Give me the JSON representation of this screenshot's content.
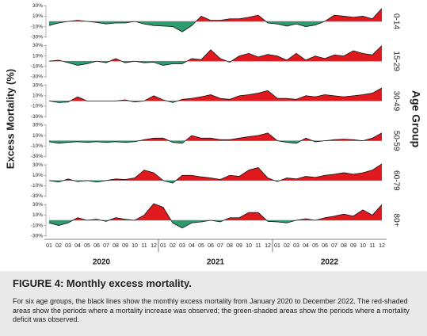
{
  "chart_data": {
    "type": "area",
    "y_label": "Excess Mortality (%)",
    "group_label": "Age Group",
    "categories": [
      "01",
      "02",
      "03",
      "04",
      "05",
      "06",
      "07",
      "08",
      "09",
      "10",
      "11",
      "12",
      "01",
      "02",
      "03",
      "04",
      "05",
      "06",
      "07",
      "08",
      "09",
      "10",
      "11",
      "12",
      "01",
      "02",
      "03",
      "04",
      "05",
      "06",
      "07",
      "08",
      "09",
      "10",
      "11",
      "12"
    ],
    "years": [
      "2020",
      "2021",
      "2022"
    ],
    "ylim": [
      -32,
      32
    ],
    "yticks": [
      {
        "value": 30,
        "label": "30%"
      },
      {
        "value": 10,
        "label": "10%"
      },
      {
        "value": -10,
        "label": "-10%"
      },
      {
        "value": -30,
        "label": "-30%"
      }
    ],
    "positive_color": "#e0191f",
    "negative_color": "#2e9b6e",
    "line_color": "#111111",
    "panels": [
      {
        "name": "0-14",
        "values": [
          -8,
          -3,
          0,
          2,
          0,
          -2,
          -5,
          -3,
          -3,
          0,
          -5,
          -8,
          -9,
          -10,
          -20,
          -8,
          10,
          2,
          2,
          5,
          5,
          8,
          12,
          -3,
          -5,
          -9,
          -5,
          -10,
          -7,
          0,
          12,
          10,
          8,
          10,
          5,
          25
        ]
      },
      {
        "name": "15-29",
        "values": [
          0,
          2,
          -3,
          -8,
          -5,
          0,
          -3,
          5,
          -3,
          0,
          -3,
          -2,
          -8,
          -5,
          -5,
          5,
          3,
          22,
          5,
          -2,
          10,
          15,
          8,
          13,
          10,
          2,
          15,
          2,
          10,
          5,
          12,
          10,
          20,
          15,
          12,
          30
        ]
      },
      {
        "name": "30-49",
        "values": [
          0,
          -3,
          -2,
          8,
          0,
          0,
          0,
          0,
          2,
          -2,
          0,
          10,
          2,
          -3,
          3,
          5,
          8,
          12,
          5,
          3,
          10,
          12,
          15,
          20,
          5,
          5,
          3,
          10,
          8,
          12,
          10,
          8,
          10,
          12,
          15,
          25
        ]
      },
      {
        "name": "50-59",
        "values": [
          -2,
          -5,
          -3,
          -2,
          -3,
          -2,
          -3,
          -2,
          -3,
          -2,
          2,
          5,
          5,
          -3,
          -5,
          10,
          5,
          5,
          2,
          2,
          5,
          8,
          10,
          15,
          0,
          -3,
          -5,
          5,
          -2,
          0,
          2,
          3,
          2,
          0,
          5,
          15
        ]
      },
      {
        "name": "60-79",
        "values": [
          0,
          -3,
          3,
          -2,
          0,
          -3,
          0,
          3,
          2,
          5,
          20,
          15,
          0,
          -5,
          10,
          10,
          7,
          5,
          2,
          10,
          8,
          20,
          25,
          5,
          -2,
          5,
          3,
          8,
          6,
          10,
          12,
          15,
          12,
          15,
          20,
          32
        ]
      },
      {
        "name": "80+",
        "values": [
          -5,
          -10,
          -5,
          5,
          0,
          2,
          -2,
          5,
          2,
          0,
          10,
          32,
          25,
          -5,
          -15,
          -5,
          -3,
          0,
          -3,
          5,
          5,
          15,
          15,
          -2,
          -3,
          -5,
          0,
          3,
          0,
          5,
          8,
          12,
          8,
          20,
          10,
          30
        ]
      }
    ]
  },
  "figure": {
    "title": "FIGURE 4: Monthly excess mortality.",
    "caption": "For six age groups, the black lines show the monthly excess mortality from January 2020 to December 2022. The red-shaded areas show the periods where a mortality increase was observed; the green-shaded areas show the periods where a mortality deficit was observed."
  }
}
